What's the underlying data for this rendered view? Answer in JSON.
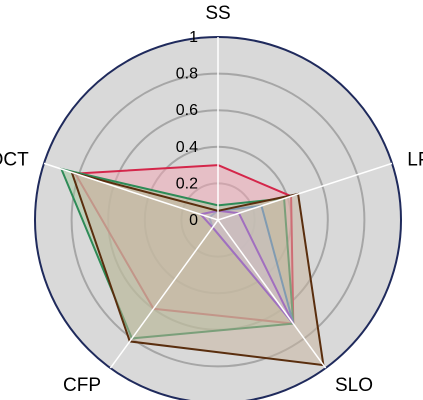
{
  "chart_data": {
    "type": "radar",
    "axes": [
      "SS",
      "LP",
      "SLO",
      "CFP",
      "OCT"
    ],
    "r_ticks": [
      "0",
      "0.2",
      "0.4",
      "0.6",
      "0.8",
      "1"
    ],
    "rlim": [
      0,
      1
    ],
    "grid": true,
    "legend": "none",
    "series": [
      {
        "values": [
          0.3,
          0.42,
          0.7,
          0.6,
          0.82
        ],
        "fill": "#f4a6b4",
        "stroke": "#d4264a"
      },
      {
        "values": [
          0.08,
          0.38,
          0.7,
          0.8,
          0.9
        ],
        "fill": "#a6c9a0",
        "stroke": "#2e8b57"
      },
      {
        "values": [
          0.05,
          0.25,
          0.7,
          0.05,
          0.05
        ],
        "fill": "#c5d2ec",
        "stroke": "#3b82c4"
      },
      {
        "values": [
          0.05,
          0.12,
          0.7,
          0.05,
          0.1
        ],
        "fill": "#d7c4f0",
        "stroke": "#7b2ae0"
      },
      {
        "values": [
          0.05,
          0.46,
          0.98,
          0.82,
          0.84
        ],
        "fill": "#c8b49e",
        "stroke": "#5a2e0e"
      }
    ],
    "colors": {
      "background_fill": "#d9d9d9",
      "outer_ring": "#1f2a5c",
      "grid": "#a6a6a6",
      "spokes": "#ffffff"
    }
  }
}
